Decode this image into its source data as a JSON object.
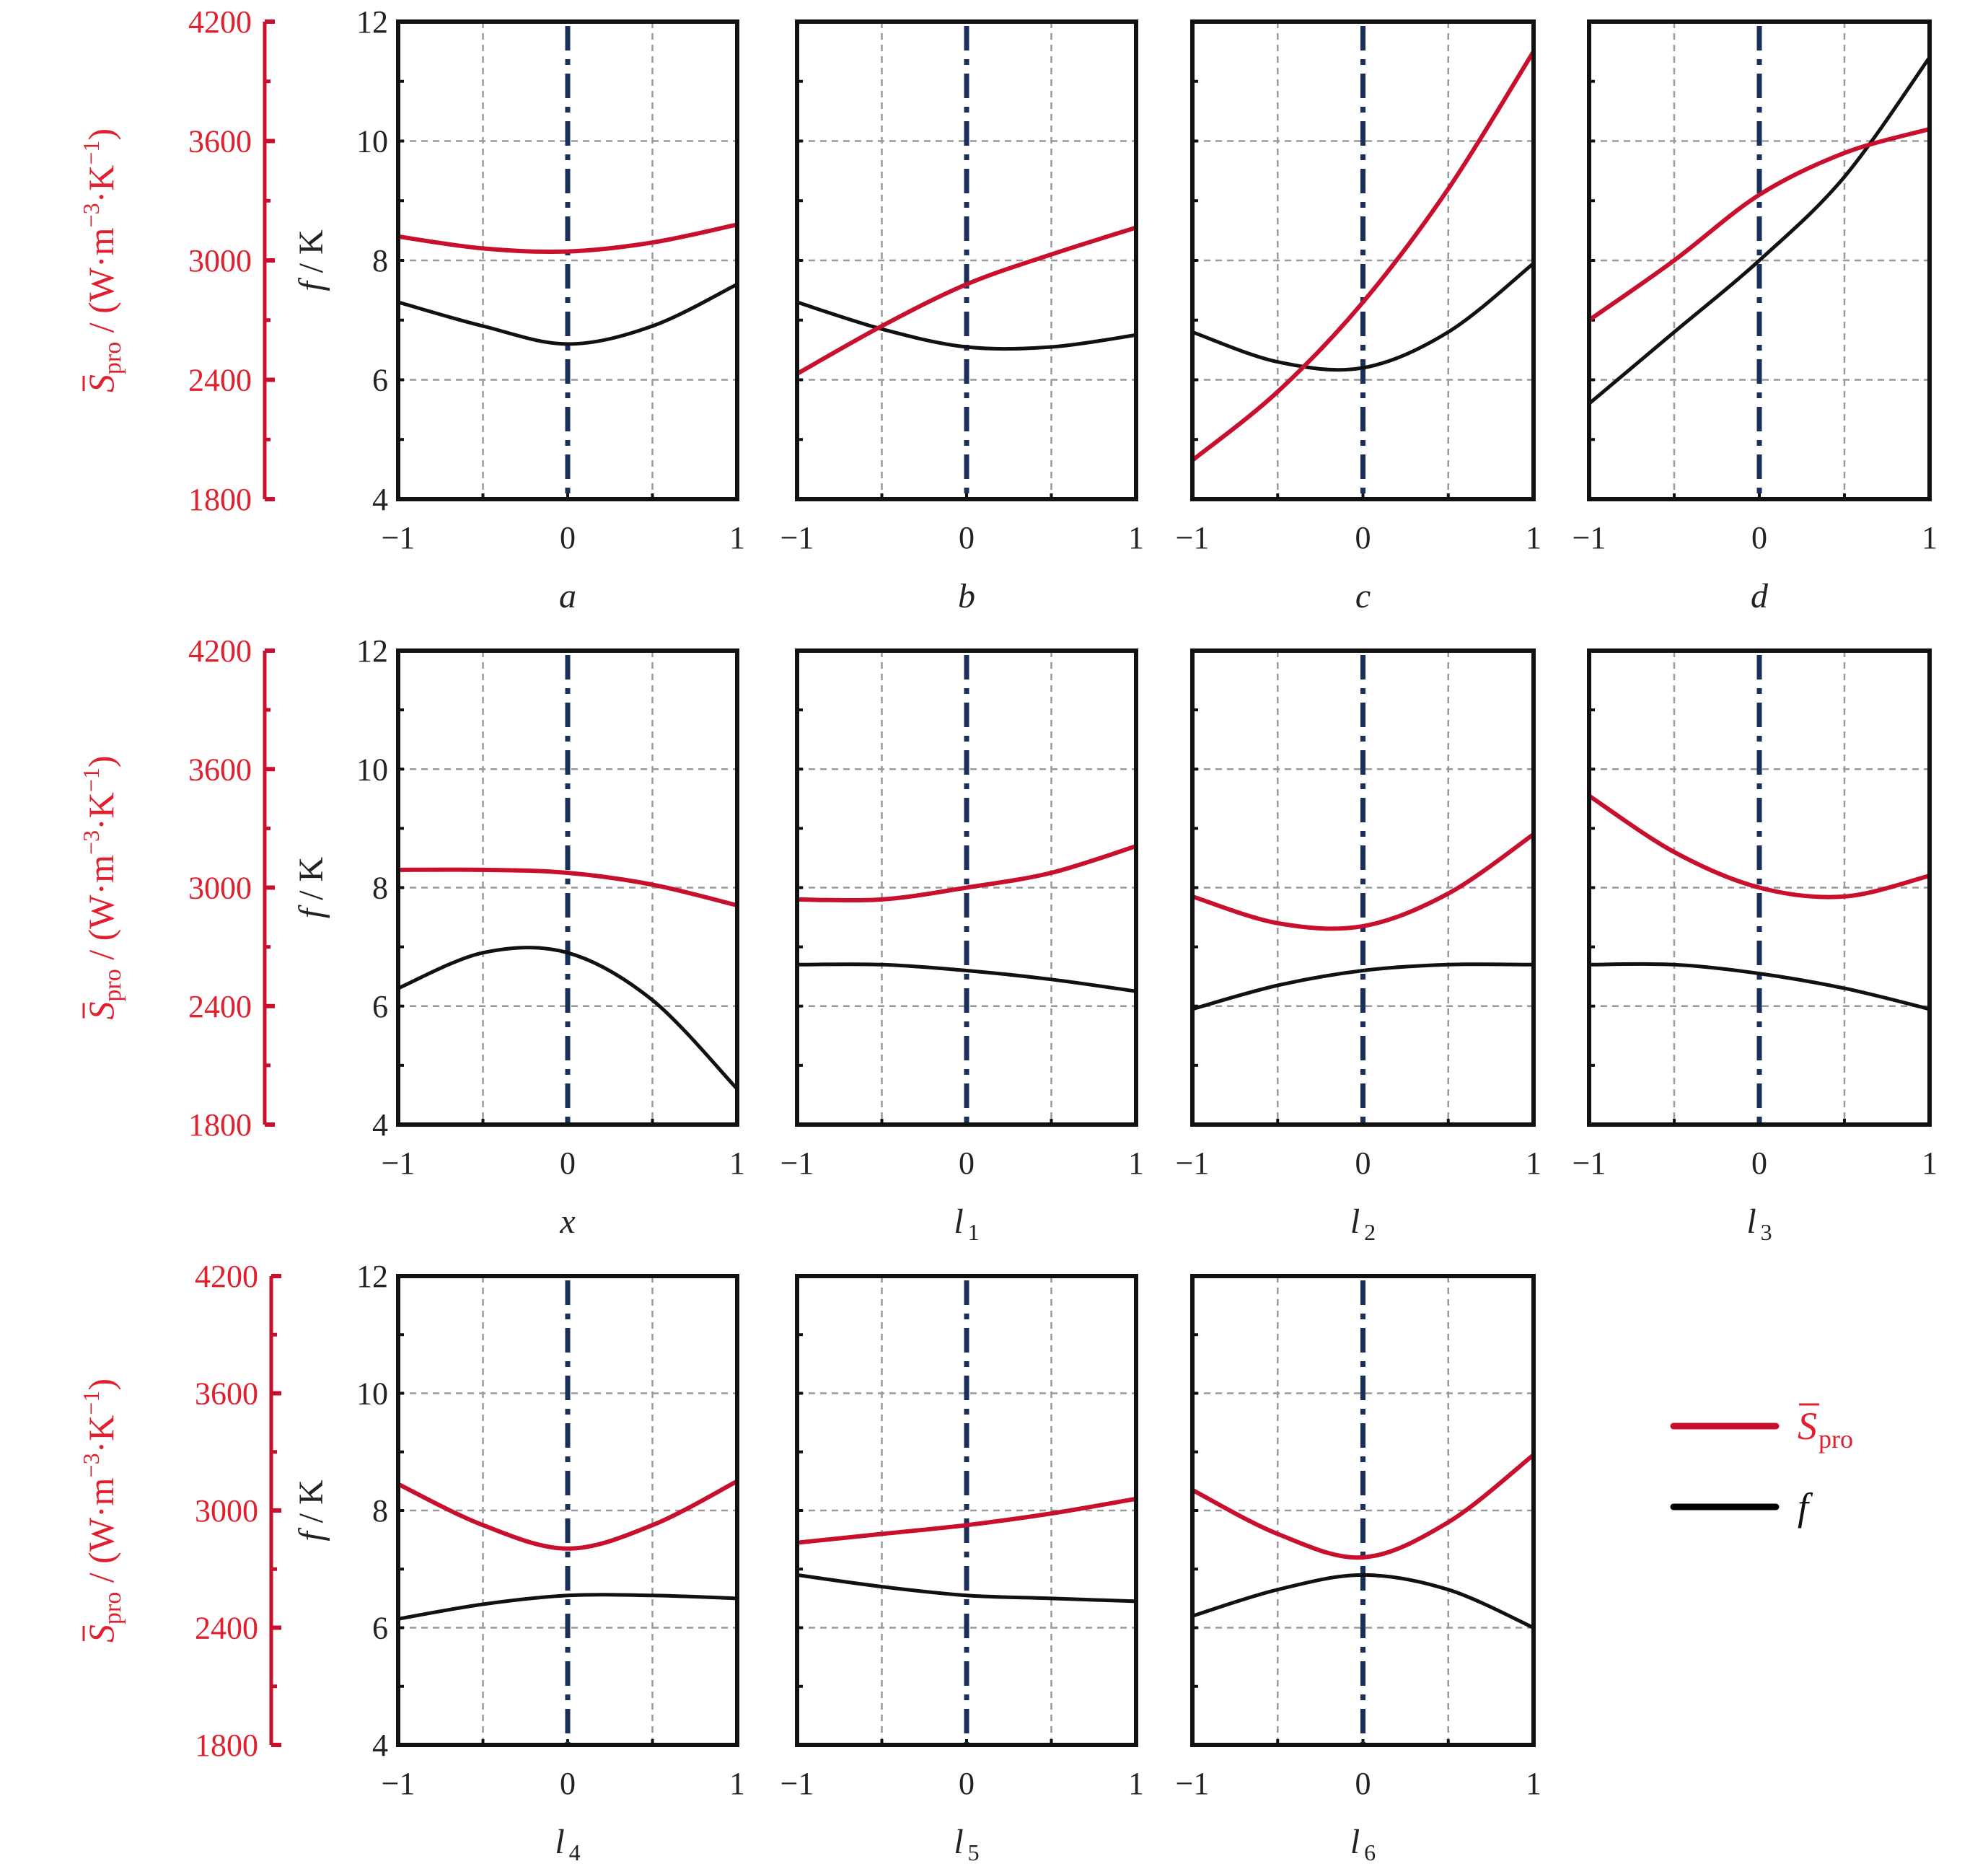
{
  "chart_data": {
    "type": "line",
    "title": "",
    "layout": "3 rows of small-multiple panels",
    "x_ticks": [
      "−1",
      "0",
      "1"
    ],
    "xlim": [
      -1,
      1
    ],
    "x_samples": [
      -1,
      -0.5,
      0,
      0.5,
      1
    ],
    "grid": true,
    "center_line": "dash-dot vertical line at x = 0",
    "left_axis": {
      "label_main": "f",
      "label_unit": " / K",
      "ylim": [
        4,
        12
      ],
      "ticks": [
        "12",
        "10",
        "8",
        "6",
        "4"
      ]
    },
    "red_axis": {
      "label_symbol": "S",
      "label_sub": "pro",
      "label_unit": " / (W·m",
      "label_exp1": "−3",
      "label_mid": "·K",
      "label_exp2": "−1",
      "label_close": ")",
      "ylim": [
        1800,
        4200
      ],
      "ticks": [
        "4200",
        "3600",
        "3000",
        "2400",
        "1800"
      ]
    },
    "legend": {
      "position": "right of bottom row",
      "items": [
        {
          "symbol": "S",
          "sub": "pro",
          "color": "#c8102e"
        },
        {
          "symbol": "f",
          "sub": "",
          "color": "#000000"
        }
      ]
    },
    "colors": {
      "red": "#c8102e",
      "black": "#111111",
      "center": "#1a2f5a",
      "grid": "#9a9a9a",
      "axis_label_red": "#e0202e"
    },
    "panels": [
      {
        "id": "a",
        "xlabel": "a",
        "xsub": "",
        "S_pro": [
          3120,
          3060,
          3045,
          3090,
          3180
        ],
        "f": [
          7.3,
          6.9,
          6.6,
          6.9,
          7.6
        ]
      },
      {
        "id": "b",
        "xlabel": "b",
        "xsub": "",
        "S_pro": [
          2430,
          2670,
          2880,
          3030,
          3165
        ],
        "f": [
          7.3,
          6.85,
          6.55,
          6.55,
          6.75
        ]
      },
      {
        "id": "c",
        "xlabel": "c",
        "xsub": "",
        "S_pro": [
          1995,
          2340,
          2790,
          3360,
          4050
        ],
        "f": [
          6.8,
          6.3,
          6.2,
          6.8,
          7.95
        ]
      },
      {
        "id": "d",
        "xlabel": "d",
        "xsub": "",
        "S_pro": [
          2700,
          3000,
          3330,
          3540,
          3660
        ],
        "f": [
          5.6,
          6.8,
          8.0,
          9.4,
          11.4
        ]
      },
      {
        "id": "x",
        "xlabel": "x",
        "xsub": "",
        "S_pro": [
          3090,
          3090,
          3075,
          3015,
          2910
        ],
        "f": [
          6.3,
          6.9,
          6.9,
          6.1,
          4.6
        ]
      },
      {
        "id": "l1",
        "xlabel": "l",
        "xsub": "1",
        "S_pro": [
          2940,
          2940,
          3000,
          3075,
          3210
        ],
        "f": [
          6.7,
          6.7,
          6.6,
          6.45,
          6.25
        ]
      },
      {
        "id": "l2",
        "xlabel": "l",
        "xsub": "2",
        "S_pro": [
          2955,
          2820,
          2805,
          2970,
          3270
        ],
        "f": [
          5.95,
          6.35,
          6.6,
          6.7,
          6.7
        ]
      },
      {
        "id": "l3",
        "xlabel": "l",
        "xsub": "3",
        "S_pro": [
          3465,
          3180,
          3000,
          2955,
          3060
        ],
        "f": [
          6.7,
          6.7,
          6.55,
          6.3,
          5.95
        ]
      },
      {
        "id": "l4",
        "xlabel": "l",
        "xsub": "4",
        "S_pro": [
          3135,
          2925,
          2805,
          2925,
          3150
        ],
        "f": [
          6.15,
          6.4,
          6.55,
          6.55,
          6.5
        ]
      },
      {
        "id": "l5",
        "xlabel": "l",
        "xsub": "5",
        "S_pro": [
          2835,
          2880,
          2925,
          2985,
          3060
        ],
        "f": [
          6.9,
          6.7,
          6.55,
          6.5,
          6.45
        ]
      },
      {
        "id": "l6",
        "xlabel": "l",
        "xsub": "6",
        "S_pro": [
          3105,
          2880,
          2760,
          2940,
          3285
        ],
        "f": [
          6.2,
          6.65,
          6.9,
          6.65,
          6.0
        ]
      }
    ]
  }
}
